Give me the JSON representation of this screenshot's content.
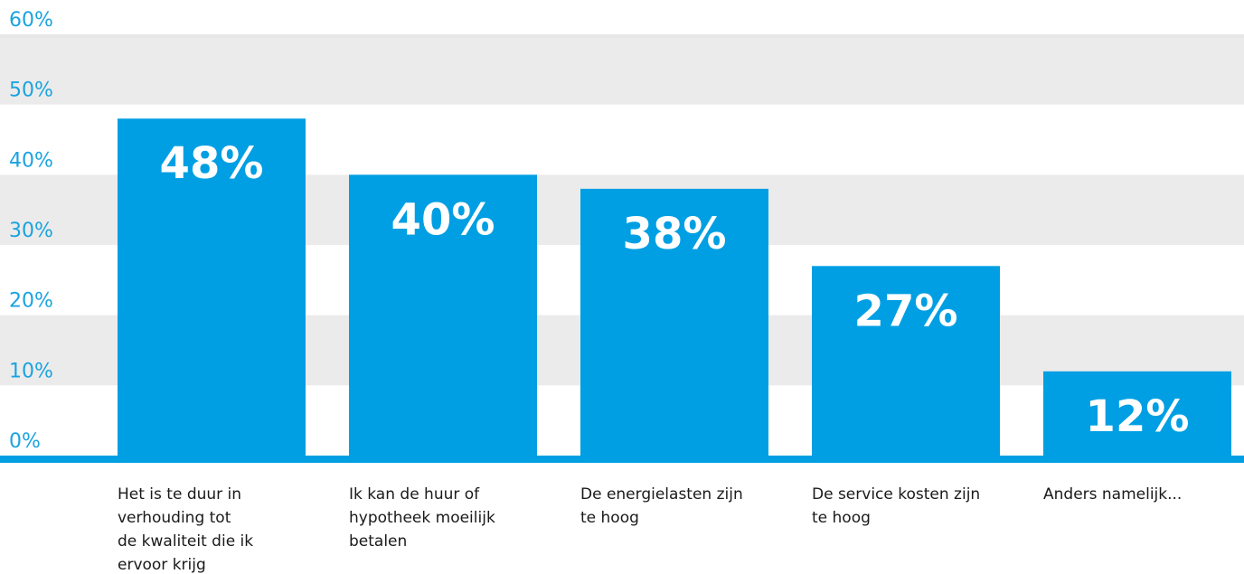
{
  "colors": {
    "bar": "#009fe3",
    "tick_text": "#1aa3e0",
    "band": "#ebebeb",
    "top_line": "#e6e6e6",
    "baseline": "#009fe3",
    "value_text": "#ffffff",
    "category_text": "#1a1a1a"
  },
  "chart_data": {
    "type": "bar",
    "ylim": [
      0,
      60
    ],
    "yticks": [
      "0%",
      "10%",
      "20%",
      "30%",
      "40%",
      "50%",
      "60%"
    ],
    "grid": "alternating bands",
    "categories": [
      [
        "Het is te duur in",
        "verhouding tot",
        "de kwaliteit die ik",
        "ervoor krijg"
      ],
      [
        "Ik kan de huur of",
        "hypotheek moeilijk",
        "betalen"
      ],
      [
        "De energielasten zijn",
        "te hoog"
      ],
      [
        "De service kosten zijn",
        "te hoog"
      ],
      [
        "Anders namelijk..."
      ]
    ],
    "values": [
      48,
      40,
      38,
      27,
      12
    ],
    "data_labels": [
      "48%",
      "40%",
      "38%",
      "27%",
      "12%"
    ]
  }
}
